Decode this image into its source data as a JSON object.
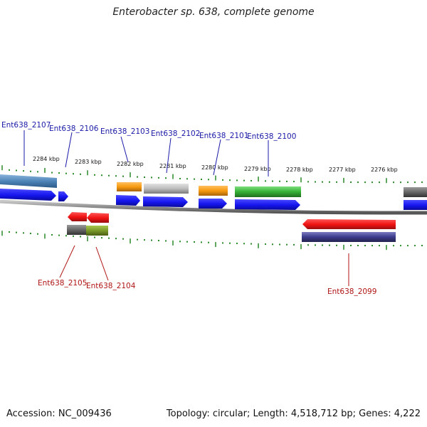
{
  "title": "Enterobacter sp. 638, complete genome",
  "footer": {
    "accession": "Accession: NC_009436",
    "summary": "Topology: circular; Length: 4,518,712 bp; Genes: 4,222"
  },
  "ruler": {
    "ticks": [
      "2284 kbp",
      "2283 kbp",
      "2282 kbp",
      "2281 kbp",
      "2280 kbp",
      "2279 kbp",
      "2278 kbp",
      "2277 kbp",
      "2276 kbp"
    ]
  },
  "genes_top": [
    "Ent638_2107",
    "Ent638_2106",
    "Ent638_2103",
    "Ent638_2102",
    "Ent638_2101",
    "Ent638_2100"
  ],
  "genes_bottom": [
    "Ent638_2105",
    "Ent638_2104",
    "Ent638_2099"
  ],
  "colors": {
    "cds_blue": "#1515ee",
    "cds_red": "#ee1111",
    "rna_orange": "#f79a10",
    "rna_gray": "#bdbdbd",
    "rna_green": "#35b035",
    "rna_steel": "#4f85b8",
    "rna_navy": "#3c3c8c",
    "rna_olive": "#7a9a2a",
    "backbone": "#8a8a8a",
    "tick": "#2a8a2a",
    "label_top": "#1a1aa8",
    "label_bottom": "#b01515"
  }
}
